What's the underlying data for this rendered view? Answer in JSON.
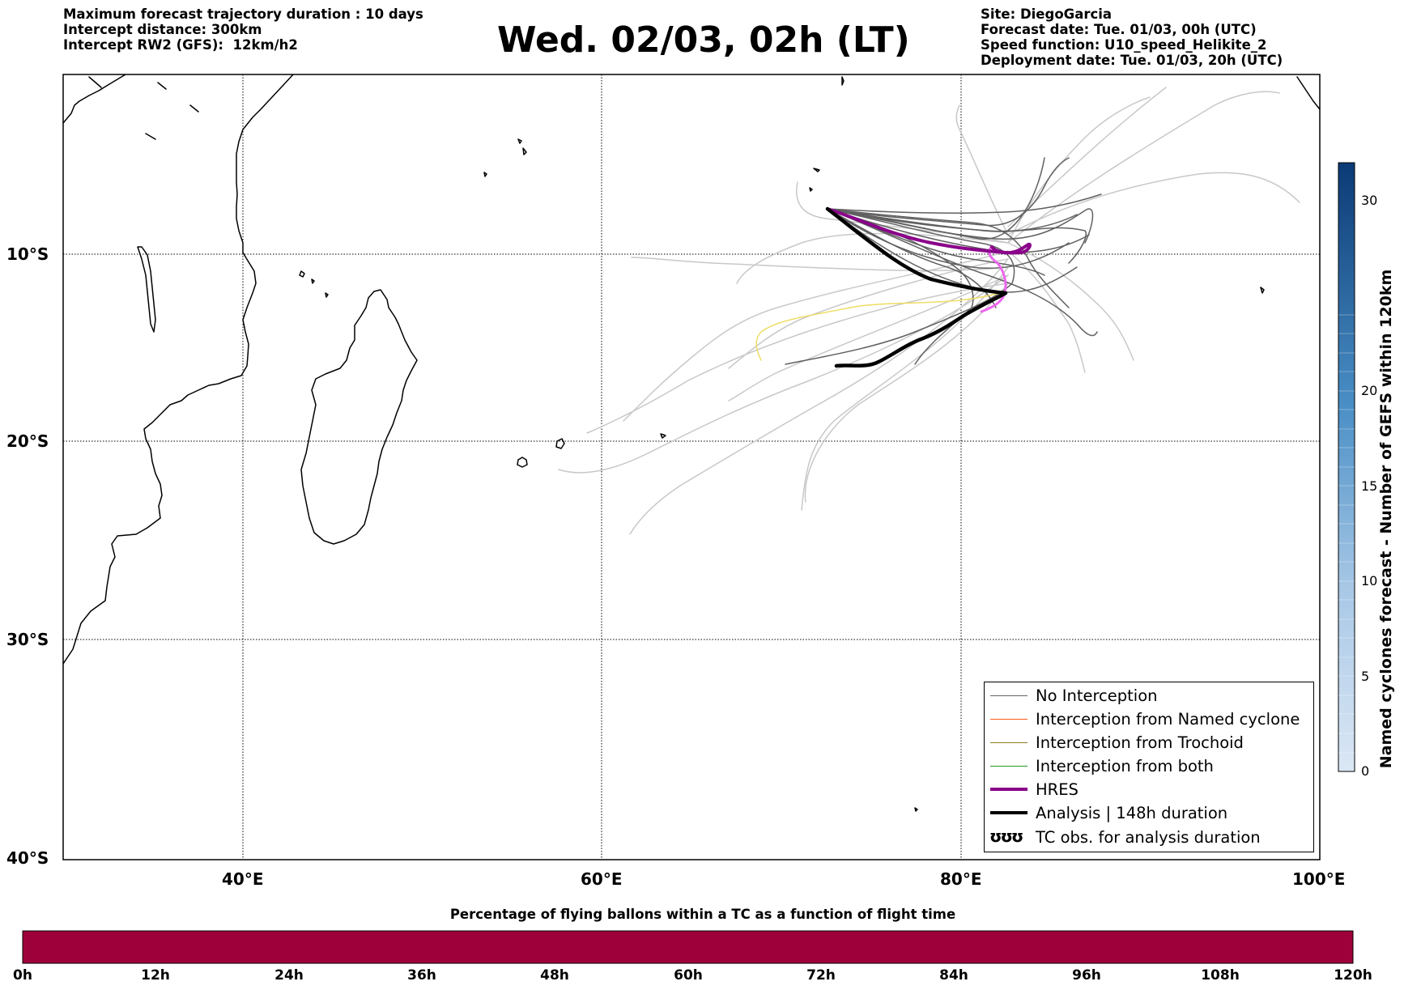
{
  "header": {
    "left_lines": [
      "Maximum forecast trajectory duration : 10 days",
      "Intercept distance: 300km",
      "Intercept RW2 (GFS):  12km/h2"
    ],
    "title": "Wed. 02/03, 02h (LT)",
    "right_lines": [
      "Site: DiegoGarcia",
      "Forecast date: Tue. 01/03, 00h (UTC)",
      "Speed function: U10_speed_Helikite_2",
      "Deployment date: Tue. 01/03, 20h (UTC)"
    ]
  },
  "map": {
    "lon_range": [
      30,
      100
    ],
    "lat_range": [
      -40,
      0
    ],
    "lat_labels": [
      "10°S",
      "20°S",
      "30°S",
      "40°S"
    ],
    "lon_labels": [
      "40°E",
      "60°E",
      "80°E",
      "100°E"
    ],
    "colors": {
      "no_interception": "#606060",
      "ensemble_light": "#c8c8c8",
      "named_cyclone": "#ff6a1a",
      "trochoid": "#8b7d1e",
      "both": "#1f9a1f",
      "hres": "#8a008a",
      "analysis": "#000000",
      "hres_later": "#ee66ee",
      "trochoid_faded": "#eedd66"
    }
  },
  "legend": {
    "items": [
      {
        "label": "No Interception",
        "style": "thin",
        "color": "#666666"
      },
      {
        "label": "Interception from Named cyclone",
        "style": "thin",
        "color": "#ff5a1a"
      },
      {
        "label": "Interception from Trochoid",
        "style": "thin",
        "color": "#8b7d1e"
      },
      {
        "label": "Interception from both",
        "style": "thin",
        "color": "#1f9a1f"
      },
      {
        "label": "HRES",
        "style": "thick",
        "color": "#8a008a"
      },
      {
        "label": "Analysis | 148h duration",
        "style": "thick",
        "color": "#000000"
      },
      {
        "label": "TC obs. for analysis duration",
        "style": "symbol",
        "symbol": "ʊʊʊ"
      }
    ]
  },
  "colorbar": {
    "title": "Named cyclones forecast - Number of GEFS within 120km",
    "ticks": [
      "0",
      "5",
      "10",
      "15",
      "20",
      "30"
    ],
    "tick_values": [
      0,
      5,
      10,
      15,
      20,
      30
    ],
    "max": 32,
    "color_low": "#dbe7f5",
    "color_high": "#0b3a75"
  },
  "bottom_bar": {
    "title": "Percentage of flying ballons within a TC as a function of flight time",
    "ticks": [
      "0h",
      "12h",
      "24h",
      "36h",
      "48h",
      "60h",
      "72h",
      "84h",
      "96h",
      "108h",
      "120h"
    ],
    "color": "#9e003a"
  }
}
